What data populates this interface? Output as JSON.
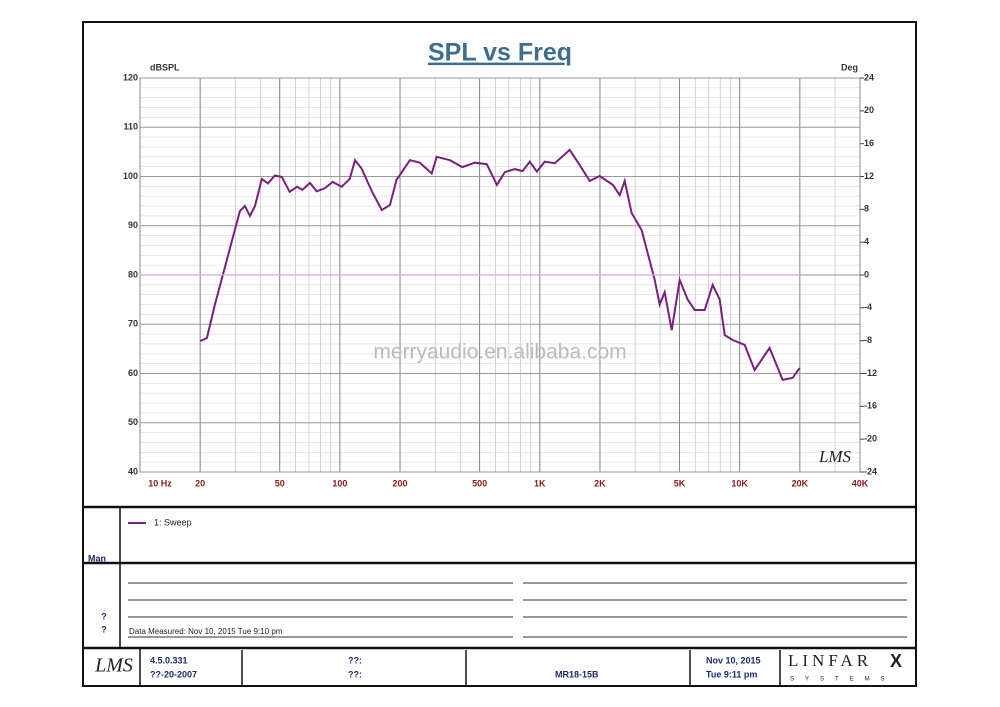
{
  "chart_data": {
    "type": "line",
    "title": "SPL vs Freq",
    "y_label": "dBSPL",
    "y2_label": "Deg",
    "watermark": "merryaudio.en.alibaba.com",
    "signature": "LMS",
    "xlog": true,
    "grid": true,
    "xlim": [
      10,
      40000
    ],
    "xticks": [
      {
        "value": 10,
        "label": "10 Hz"
      },
      20,
      50,
      100,
      200,
      500,
      {
        "value": 1000,
        "label": "1K"
      },
      {
        "value": 2000,
        "label": "2K"
      },
      {
        "value": 5000,
        "label": "5K"
      },
      {
        "value": 10000,
        "label": "10K"
      },
      {
        "value": 20000,
        "label": "20K"
      },
      {
        "value": 40000,
        "label": "40K"
      }
    ],
    "ylim": [
      40,
      120
    ],
    "yticks": [
      40,
      50,
      60,
      70,
      80,
      90,
      100,
      110,
      120
    ],
    "y2lim": [
      -24,
      24
    ],
    "y2ticks": [
      -24,
      -20,
      -16,
      -12,
      -8,
      -4,
      0,
      4,
      8,
      12,
      16,
      20,
      24
    ],
    "series": [
      {
        "name": "1: Sweep",
        "color": "#7b1f7f",
        "x": [
          20,
          21.6,
          23.7,
          28,
          31.6,
          33.5,
          35.5,
          37.6,
          40.7,
          43.7,
          47.3,
          51.3,
          56,
          61,
          65,
          70.8,
          76.6,
          84,
          92,
          102,
          112,
          119,
          128,
          145,
          162,
          178,
          192,
          224,
          251,
          288,
          305,
          355,
          410,
          473,
          543,
          610,
          669,
          750,
          820,
          891,
          966,
          1059,
          1189,
          1412,
          1585,
          1778,
          1995,
          2323,
          2512,
          2660,
          2880,
          3236,
          3758,
          3981,
          4217,
          4571,
          5012,
          5495,
          5957,
          6683,
          7328,
          7943,
          8414,
          9226,
          10593,
          11885,
          13335,
          14125,
          16406,
          18408,
          19953
        ],
        "values": [
          66.6,
          67.2,
          74,
          85,
          93,
          94,
          92,
          94,
          99.5,
          98.6,
          100.2,
          99.9,
          96.9,
          97.9,
          97.3,
          98.7,
          97,
          97.6,
          98.9,
          97.9,
          99.5,
          103.3,
          101.7,
          96.9,
          93.2,
          94.2,
          99.3,
          103.3,
          102.8,
          100.6,
          104,
          103.3,
          101.9,
          102.8,
          102.5,
          98.3,
          100.9,
          101.5,
          101.1,
          103,
          101,
          103,
          102.7,
          105.4,
          102.3,
          99.1,
          100.1,
          98.3,
          96.2,
          99.1,
          92.6,
          89.1,
          79,
          74,
          76.5,
          68.8,
          79,
          75,
          72.9,
          72.9,
          78,
          75,
          67.8,
          66.8,
          65.8,
          60.7,
          63.7,
          65.2,
          58.7,
          59.1,
          61.1
        ]
      },
      {
        "color": "#d9a6dc",
        "axis": "y2",
        "x": [
          10,
          20000
        ],
        "values": [
          0,
          0
        ]
      }
    ]
  },
  "legend_side_label": "Man",
  "notes": {
    "marks": [
      "?",
      "?"
    ],
    "measured": "Data Measured: Nov 10, 2015 Tue 9:10 pm"
  },
  "footer": {
    "logo": "LMS",
    "version": "4.5.0.331",
    "date_code": "??-20-2007",
    "field_a": "??:",
    "field_b": "??:",
    "model": "MR18-15B",
    "date": "Nov 10, 2015",
    "time": "Tue 9:11 pm",
    "brand": "LINFAR",
    "brand_mark": "X",
    "brand_sub": "SYSTEMS"
  }
}
